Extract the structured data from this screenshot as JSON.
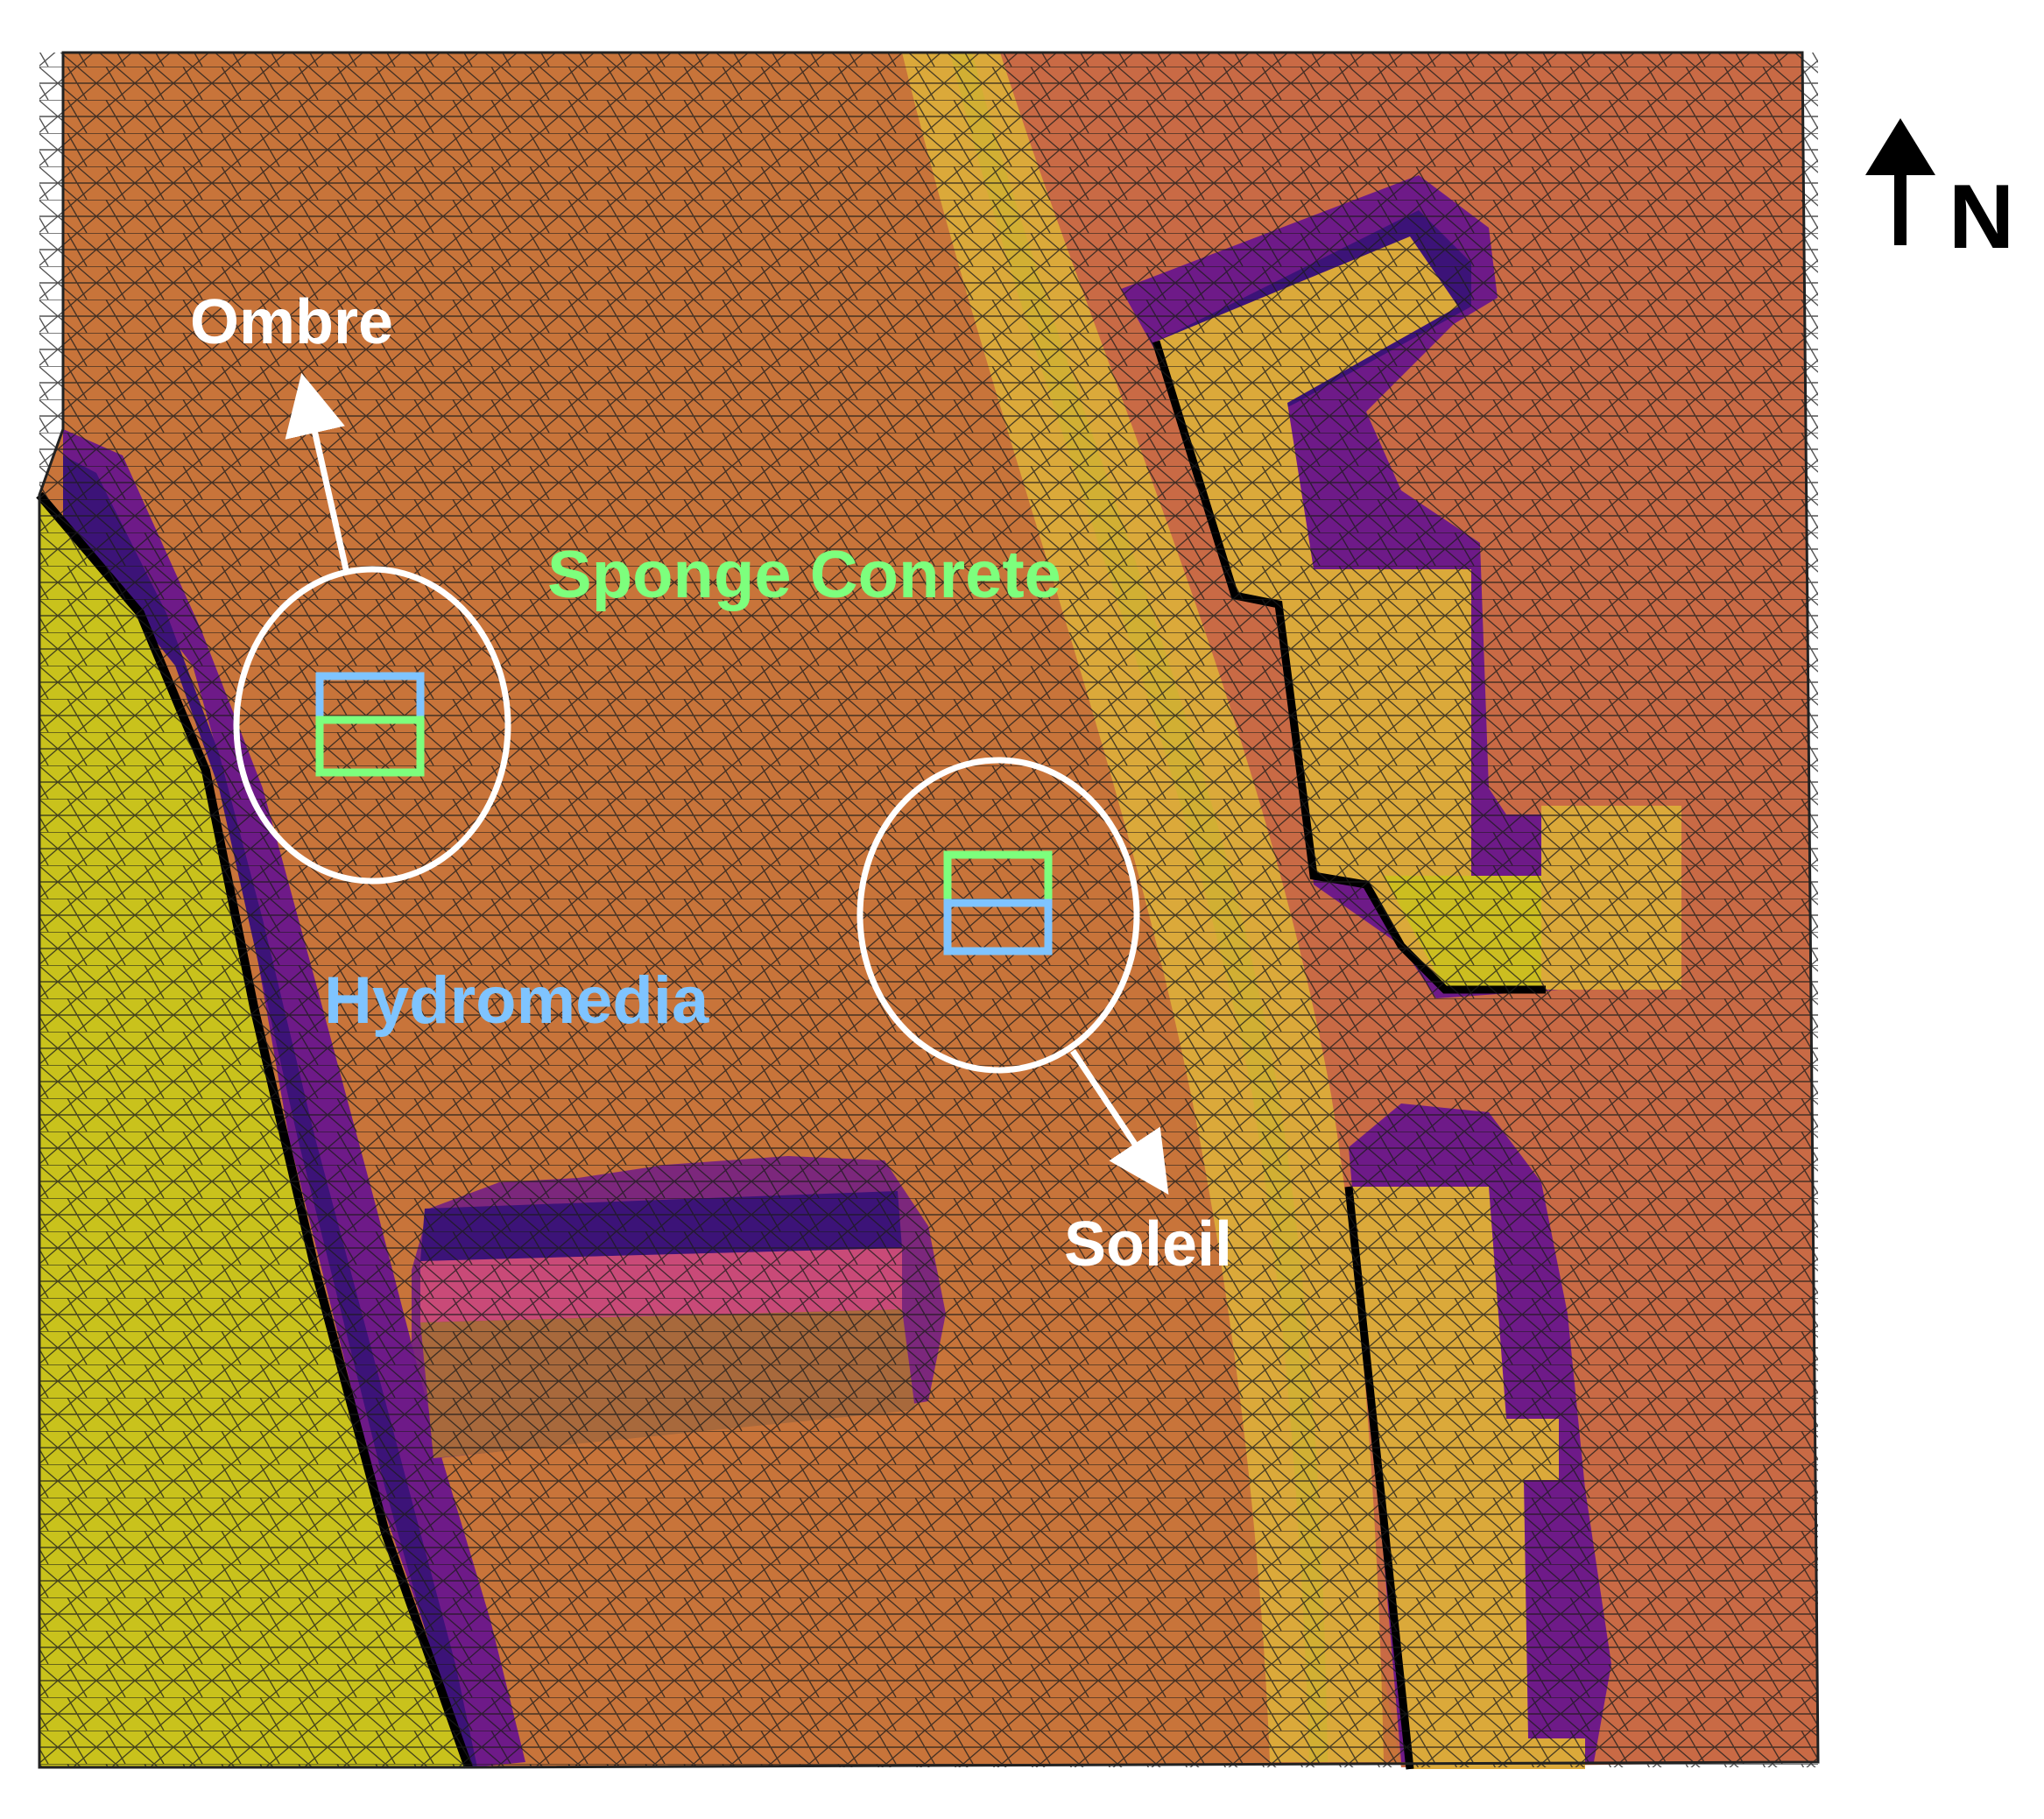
{
  "labels": {
    "ombre": "Ombre",
    "soleil": "Soleil",
    "sponge_concrete": "Sponge Conrete",
    "hydromedia": "Hydromedia",
    "north": "N"
  },
  "colors": {
    "ground": "#c8743a",
    "ground_east": "#c96a45",
    "yellow_green": "#c9c21c",
    "gold": "#dba93a",
    "pink": "#c94a78",
    "dark_purple": "#3c1378",
    "purple": "#6e1a88",
    "brown": "#a8693c",
    "label_white": "#ffffff",
    "label_green": "#7dff7d",
    "label_blue": "#7fc4ff",
    "mesh_line": "#1a1a1a"
  },
  "icons": {
    "north_arrow": "north-arrow-icon"
  }
}
